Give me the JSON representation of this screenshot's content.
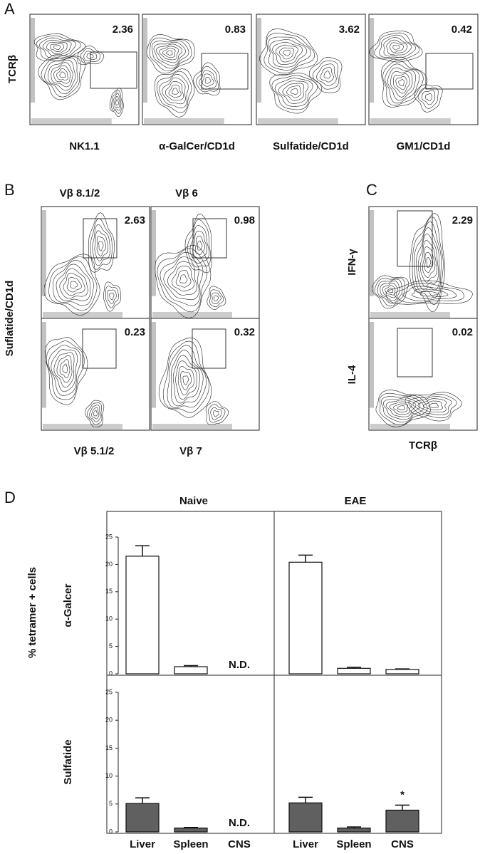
{
  "panel_a": {
    "label": "A",
    "y_label": "TCRβ",
    "plots": [
      {
        "x_label": "NK1.1",
        "gate": 2.36
      },
      {
        "x_label": "α-GalCer/CD1d",
        "gate": 0.83
      },
      {
        "x_label": "Sulfatide/CD1d",
        "gate": 3.62
      },
      {
        "x_label": "GM1/CD1d",
        "gate": 0.42
      }
    ]
  },
  "panel_b": {
    "label": "B",
    "y_label": "Suflatide/CD1d",
    "top_labels": [
      "Vβ 8.1/2",
      "Vβ 6"
    ],
    "bottom_labels": [
      "Vβ 5.1/2",
      "Vβ 7"
    ],
    "gates": [
      2.63,
      0.98,
      0.23,
      0.32
    ]
  },
  "panel_c": {
    "label": "C",
    "row_labels": [
      "IFN-γ",
      "IL-4"
    ],
    "x_label": "TCRβ",
    "gates": [
      2.29,
      0.02
    ]
  },
  "panel_d": {
    "label": "D",
    "y_label": "% tetramer + cells"
  },
  "chart_data": [
    {
      "type": "bar",
      "title": "Naive",
      "y_label": "α-Galcer",
      "values": [
        21.5,
        1.3,
        null
      ],
      "errors": [
        1.9,
        0.2,
        null
      ],
      "value_labels": [
        null,
        null,
        "N.D."
      ],
      "color": "#ffffff",
      "ylim": [
        0,
        25
      ],
      "yticks": [
        0,
        5,
        10,
        15,
        20,
        25
      ]
    },
    {
      "type": "bar",
      "title": "EAE",
      "values": [
        20.4,
        1.0,
        0.8
      ],
      "errors": [
        1.3,
        0.2,
        0.1
      ],
      "color": "#ffffff",
      "ylim": [
        0,
        25
      ]
    },
    {
      "type": "bar",
      "y_label": "Sulfatide",
      "categories": [
        "Liver",
        "Spleen",
        "CNS"
      ],
      "values": [
        5.1,
        0.7,
        null
      ],
      "errors": [
        1.0,
        0.1,
        null
      ],
      "value_labels": [
        null,
        null,
        "N.D."
      ],
      "color": "#606060",
      "ylim": [
        0,
        25
      ],
      "yticks": [
        0,
        5,
        10,
        15,
        20,
        25
      ]
    },
    {
      "type": "bar",
      "categories": [
        "Liver",
        "Spleen",
        "CNS"
      ],
      "values": [
        5.2,
        0.7,
        3.9
      ],
      "errors": [
        1.0,
        0.2,
        0.9
      ],
      "value_labels": [
        null,
        null,
        "*"
      ],
      "color": "#606060",
      "ylim": [
        0,
        25
      ]
    }
  ]
}
